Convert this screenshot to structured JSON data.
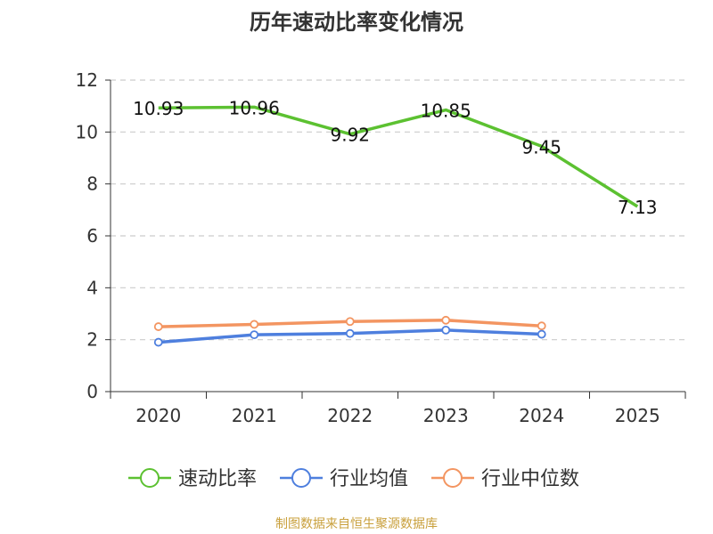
{
  "chart_data": {
    "type": "line",
    "title": "历年速动比率变化情况",
    "categories": [
      "2020",
      "2021",
      "2022",
      "2023",
      "2024",
      "2025"
    ],
    "ylim": [
      0,
      12
    ],
    "yticks": [
      0,
      2,
      4,
      6,
      8,
      10,
      12
    ],
    "grid": "horizontal dashed",
    "legend_position": "bottom",
    "series": [
      {
        "name": "速动比率",
        "color": "#5cc131",
        "values": [
          10.93,
          10.96,
          9.92,
          10.85,
          9.45,
          7.13
        ],
        "labels": [
          "10.93",
          "10.96",
          "9.92",
          "10.85",
          "9.45",
          "7.13"
        ]
      },
      {
        "name": "行业均值",
        "color": "#4e7fde",
        "values": [
          1.9,
          2.19,
          2.24,
          2.37,
          2.21,
          null
        ]
      },
      {
        "name": "行业中位数",
        "color": "#f39561",
        "values": [
          2.5,
          2.59,
          2.7,
          2.75,
          2.53,
          null
        ]
      }
    ]
  },
  "source": "制图数据来自恒生聚源数据库"
}
